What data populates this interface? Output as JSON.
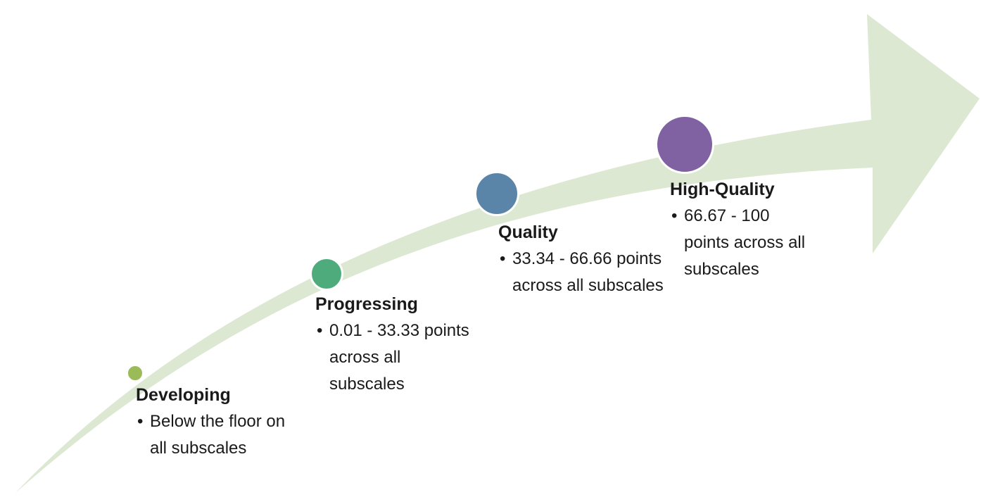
{
  "colors": {
    "arrow": "#dde8d2",
    "circle_border": "#ffffff",
    "text": "#1a1a1a"
  },
  "stages": [
    {
      "title": "Developing",
      "bullet": "Below the floor on all subscales",
      "color": "#9bbb59"
    },
    {
      "title": "Progressing",
      "bullet": "0.01 - 33.33 points across all subscales",
      "color": "#4eac7c"
    },
    {
      "title": "Quality",
      "bullet": "33.34 - 66.66 points across all subscales",
      "color": "#5b85a8"
    },
    {
      "title": "High-Quality",
      "bullet": "66.67 - 100 points across all subscales",
      "color": "#8062a3"
    }
  ]
}
